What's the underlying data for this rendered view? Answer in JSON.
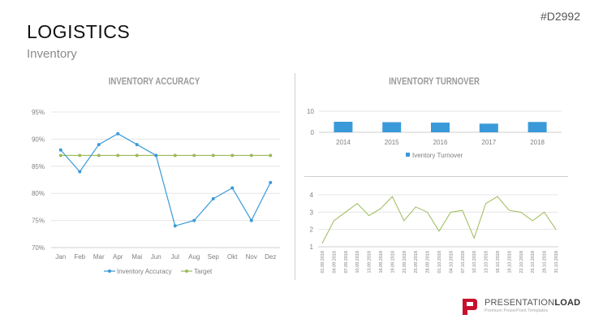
{
  "header": {
    "title": "LOGISTICS",
    "subtitle": "Inventory",
    "code": "#D2992"
  },
  "logo": {
    "text_regular": "PRESENTATION",
    "text_bold": "LOAD",
    "tagline": "Premium PowerPoint Templates"
  },
  "colors": {
    "blue": "#3a9ad9",
    "green": "#9bbb59",
    "grid": "#e6e6e6",
    "axis_text": "#7f7f7f"
  },
  "chart_data": [
    {
      "type": "line",
      "title": "INVENTORY ACCURACY",
      "categories": [
        "Jan",
        "Feb",
        "Mar",
        "Apr",
        "Mai",
        "Jun",
        "Jul",
        "Aug",
        "Sep",
        "Okt",
        "Nov",
        "Dez"
      ],
      "yticks": [
        "70%",
        "75%",
        "80%",
        "85%",
        "90%",
        "95%"
      ],
      "ylim": [
        70,
        95
      ],
      "grid": true,
      "legend": "bottom",
      "series": [
        {
          "name": "Inventory Accuracy",
          "color": "#3a9ad9",
          "values": [
            88,
            84,
            89,
            91,
            89,
            87,
            74,
            75,
            79,
            81,
            75,
            82
          ]
        },
        {
          "name": "Target",
          "color": "#9bbb59",
          "values": [
            87,
            87,
            87,
            87,
            87,
            87,
            87,
            87,
            87,
            87,
            87,
            87
          ]
        }
      ]
    },
    {
      "type": "bar",
      "title": "INVENTORY TURNOVER",
      "categories": [
        "2014",
        "2015",
        "2016",
        "2017",
        "2018"
      ],
      "yticks": [
        "0",
        "10"
      ],
      "ylim": [
        0,
        10
      ],
      "grid": true,
      "legend": "bottom",
      "series": [
        {
          "name": "Iventory Turnover",
          "color": "#3a9ad9",
          "values": [
            5.0,
            4.8,
            4.6,
            4.1,
            4.9
          ]
        }
      ]
    },
    {
      "type": "line",
      "categories": [
        "01.09.2018",
        "04.09.2018",
        "07.09.2018",
        "10.09.2018",
        "13.09.2018",
        "16.09.2018",
        "19.09.2018",
        "22.09.2018",
        "25.09.2018",
        "28.09.2018",
        "01.10.2018",
        "04.10.2018",
        "07.10.2018",
        "10.10.2018",
        "13.10.2018",
        "16.10.2018",
        "19.10.2018",
        "22.10.2018",
        "25.10.2018",
        "28.10.2018",
        "31.10.2018"
      ],
      "yticks": [
        "1",
        "2",
        "3",
        "4"
      ],
      "ylim": [
        1,
        4
      ],
      "grid": true,
      "series": [
        {
          "color": "#9bbb59",
          "values": [
            1.2,
            2.5,
            3.0,
            3.5,
            2.8,
            3.2,
            3.9,
            2.5,
            3.3,
            3.0,
            1.9,
            3.0,
            3.1,
            1.5,
            3.5,
            3.9,
            3.1,
            3.0,
            2.5,
            3.0,
            2.0
          ]
        }
      ]
    }
  ]
}
